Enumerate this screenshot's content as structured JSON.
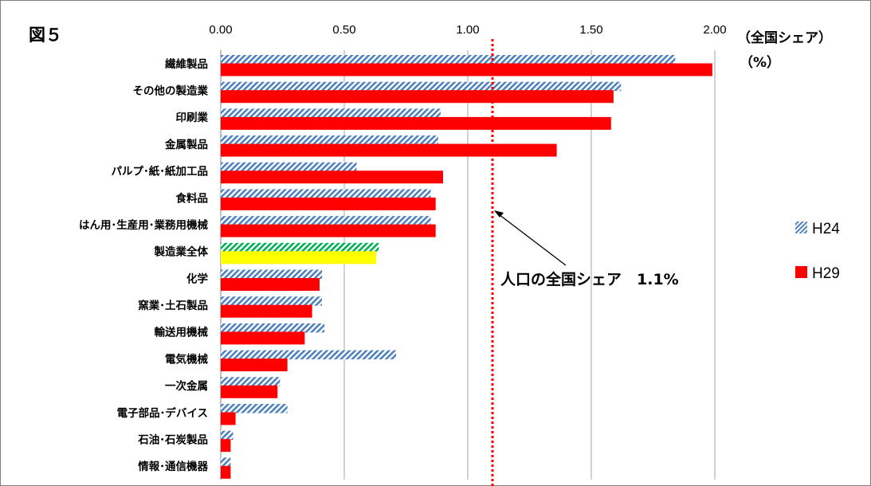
{
  "figure_label": "図５",
  "chart_data": {
    "type": "bar",
    "orientation": "horizontal",
    "categories": [
      "繊維製品",
      "その他の製造業",
      "印刷業",
      "金属製品",
      "パルプ･紙･紙加工品",
      "食料品",
      "はん用･生産用･業務用機械",
      "製造業全体",
      "化学",
      "窯業･土石製品",
      "輸送用機械",
      "電気機械",
      "一次金属",
      "電子部品･デバイス",
      "石油･石炭製品",
      "情報･通信機器"
    ],
    "series": [
      {
        "name": "H24",
        "values": [
          1.84,
          1.62,
          0.89,
          0.88,
          0.55,
          0.85,
          0.85,
          0.64,
          0.41,
          0.41,
          0.42,
          0.71,
          0.24,
          0.27,
          0.05,
          0.04
        ],
        "color": "#4f81bd",
        "pattern": "hatched"
      },
      {
        "name": "H29",
        "values": [
          1.99,
          1.59,
          1.58,
          1.36,
          0.9,
          0.87,
          0.87,
          0.63,
          0.4,
          0.37,
          0.34,
          0.27,
          0.23,
          0.06,
          0.04,
          0.04
        ],
        "color": "#ff0000",
        "pattern": "solid"
      }
    ],
    "highlight": {
      "category": "製造業全体",
      "H24_color": "#00b050",
      "H29_color": "#ffff00"
    },
    "xlim": [
      0,
      2.0
    ],
    "xticks": [
      "0.00",
      "0.50",
      "1.00",
      "1.50",
      "2.00"
    ],
    "xtick_values": [
      0,
      0.5,
      1.0,
      1.5,
      2.0
    ],
    "unit_label_line1": "（全国シェア）",
    "unit_label_line2": "（%）",
    "reference_line": {
      "value": 1.1,
      "label": "人口の全国シェア　1.1%",
      "color": "#ff0000",
      "style": "dotted"
    },
    "grid": "vertical",
    "legend_position": "right"
  }
}
